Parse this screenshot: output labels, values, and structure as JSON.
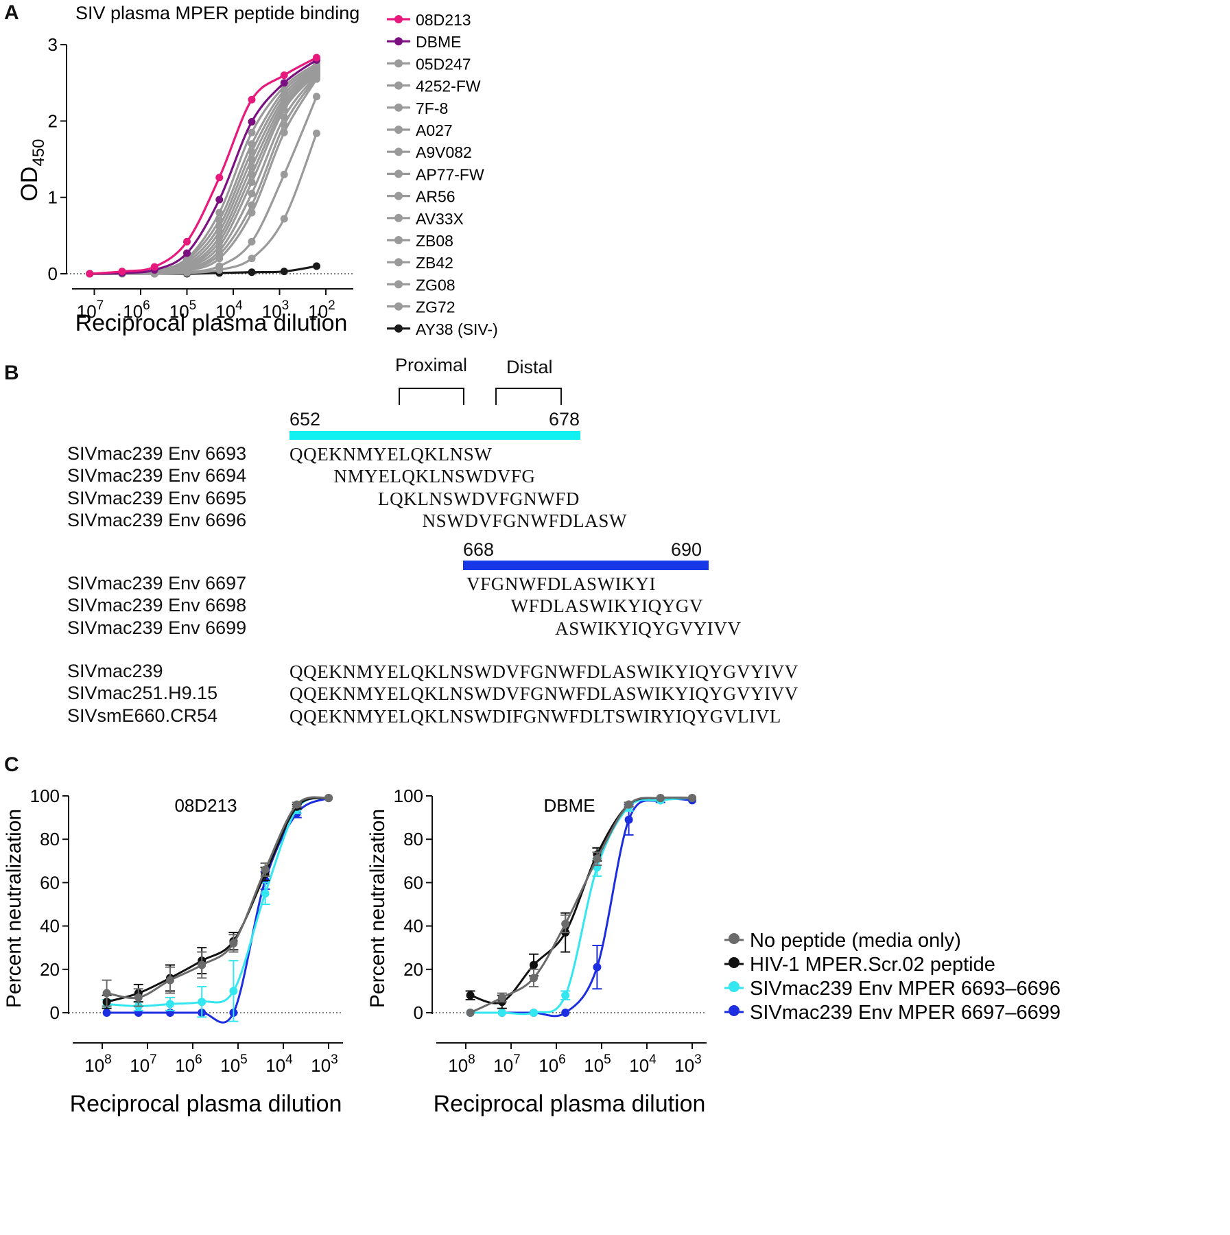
{
  "panels": {
    "a": "A",
    "b": "B",
    "c": "C"
  },
  "chart_data": [
    {
      "type": "line",
      "title": "SIV plasma MPER peptide binding",
      "ylabel_main": "OD",
      "ylabel_sub": "450",
      "xlabel": "Reciprocal plasma dilution",
      "x_log_dilution": [
        7.1,
        6.4,
        5.7,
        5.0,
        4.3,
        3.6,
        2.9,
        2.2
      ],
      "xticks": [
        {
          "base": "10",
          "exp": "7"
        },
        {
          "base": "10",
          "exp": "6"
        },
        {
          "base": "10",
          "exp": "5"
        },
        {
          "base": "10",
          "exp": "4"
        },
        {
          "base": "10",
          "exp": "3"
        },
        {
          "base": "10",
          "exp": "2"
        }
      ],
      "ylim": [
        0,
        3
      ],
      "yticks": [
        "0",
        "1",
        "2",
        "3"
      ],
      "colors": {
        "pink": "#e8197d",
        "purple": "#7b1080",
        "gray": "#9a9a9a",
        "black": "#1a1a1a"
      },
      "series": [
        {
          "name": "08D213",
          "color": "#e8197d",
          "values": [
            0.0,
            0.03,
            0.09,
            0.42,
            1.26,
            2.28,
            2.6,
            2.83
          ]
        },
        {
          "name": "DBME",
          "color": "#7b1080",
          "values": [
            0.0,
            0.01,
            0.05,
            0.27,
            0.97,
            1.99,
            2.5,
            2.8
          ]
        },
        {
          "name": "05D247",
          "color": "#9a9a9a",
          "values": [
            0.0,
            0.01,
            0.04,
            0.2,
            0.8,
            1.85,
            2.45,
            2.75
          ]
        },
        {
          "name": "4252-FW",
          "color": "#9a9a9a",
          "values": [
            0.0,
            0.01,
            0.03,
            0.18,
            0.7,
            1.7,
            2.4,
            2.72
          ]
        },
        {
          "name": "7F-8",
          "color": "#9a9a9a",
          "values": [
            0.0,
            0.01,
            0.03,
            0.15,
            0.62,
            1.6,
            2.35,
            2.7
          ]
        },
        {
          "name": "A027",
          "color": "#9a9a9a",
          "values": [
            0.0,
            0.01,
            0.02,
            0.12,
            0.55,
            1.5,
            2.3,
            2.68
          ]
        },
        {
          "name": "A9V082",
          "color": "#9a9a9a",
          "values": [
            0.0,
            0.01,
            0.02,
            0.1,
            0.48,
            1.4,
            2.25,
            2.66
          ]
        },
        {
          "name": "AP77-FW",
          "color": "#9a9a9a",
          "values": [
            0.0,
            0.0,
            0.02,
            0.09,
            0.42,
            1.3,
            2.2,
            2.64
          ]
        },
        {
          "name": "AR56",
          "color": "#9a9a9a",
          "values": [
            0.0,
            0.0,
            0.02,
            0.08,
            0.36,
            1.2,
            2.15,
            2.62
          ]
        },
        {
          "name": "AV33X",
          "color": "#9a9a9a",
          "values": [
            0.0,
            0.0,
            0.01,
            0.06,
            0.3,
            1.05,
            2.05,
            2.6
          ]
        },
        {
          "name": "ZB08",
          "color": "#9a9a9a",
          "values": [
            0.0,
            0.0,
            0.01,
            0.05,
            0.25,
            0.9,
            1.95,
            2.58
          ]
        },
        {
          "name": "ZB42",
          "color": "#9a9a9a",
          "values": [
            0.0,
            0.0,
            0.01,
            0.04,
            0.2,
            0.8,
            1.85,
            2.55
          ]
        },
        {
          "name": "ZG08",
          "color": "#9a9a9a",
          "values": [
            0.0,
            0.0,
            0.01,
            0.02,
            0.1,
            0.42,
            1.3,
            2.32
          ]
        },
        {
          "name": "ZG72",
          "color": "#9a9a9a",
          "values": [
            0.0,
            0.0,
            0.0,
            0.01,
            0.05,
            0.2,
            0.72,
            1.84
          ]
        },
        {
          "name": "AY38 (SIV-)",
          "color": "#1a1a1a",
          "values": [
            0.0,
            0.0,
            0.0,
            0.0,
            0.01,
            0.02,
            0.03,
            0.1
          ]
        }
      ]
    },
    {
      "type": "line",
      "title": "08D213",
      "ylabel": "Percent neutralization",
      "xlabel": "Reciprocal plasma dilution",
      "x_log_dilution": [
        7.9,
        7.2,
        6.5,
        5.8,
        5.1,
        4.4,
        3.7,
        3.0
      ],
      "xticks": [
        {
          "base": "10",
          "exp": "8"
        },
        {
          "base": "10",
          "exp": "7"
        },
        {
          "base": "10",
          "exp": "6"
        },
        {
          "base": "10",
          "exp": "5"
        },
        {
          "base": "10",
          "exp": "4"
        },
        {
          "base": "10",
          "exp": "3"
        }
      ],
      "ylim": [
        0,
        100
      ],
      "yticks": [
        "0",
        "20",
        "40",
        "60",
        "80",
        "100"
      ],
      "series": [
        {
          "name": "No peptide (media only)",
          "color": "#6b6b6b",
          "values": [
            9,
            7,
            15,
            22,
            32,
            66,
            96,
            99
          ],
          "errors": [
            6,
            4,
            6,
            6,
            4,
            3,
            1,
            0
          ]
        },
        {
          "name": "HIV-1 MPER.Scr.02 peptide",
          "color": "#111111",
          "values": [
            5,
            9,
            16,
            24,
            33,
            64,
            95,
            99
          ],
          "errors": [
            3,
            4,
            6,
            6,
            4,
            3,
            1,
            0
          ]
        },
        {
          "name": "SIVmac239 Env MPER 6693–6696",
          "color": "#33e6ef",
          "values": [
            4,
            3,
            4,
            5,
            10,
            55,
            94,
            99
          ],
          "errors": [
            2,
            2,
            3,
            7,
            14,
            5,
            2,
            0
          ]
        },
        {
          "name": "SIVmac239 Env MPER 6697–6699",
          "color": "#1d2de0",
          "values": [
            0,
            0,
            0,
            0,
            0,
            61,
            92,
            99
          ],
          "errors": [
            0,
            0,
            0,
            0,
            0,
            4,
            2,
            0
          ]
        }
      ]
    },
    {
      "type": "line",
      "title": "DBME",
      "ylabel": "Percent neutralization",
      "xlabel": "Reciprocal plasma dilution",
      "x_log_dilution": [
        7.9,
        7.2,
        6.5,
        5.8,
        5.1,
        4.4,
        3.7,
        3.0
      ],
      "xticks": [
        {
          "base": "10",
          "exp": "8"
        },
        {
          "base": "10",
          "exp": "7"
        },
        {
          "base": "10",
          "exp": "6"
        },
        {
          "base": "10",
          "exp": "5"
        },
        {
          "base": "10",
          "exp": "4"
        },
        {
          "base": "10",
          "exp": "3"
        }
      ],
      "ylim": [
        0,
        100
      ],
      "yticks": [
        "0",
        "20",
        "40",
        "60",
        "80",
        "100"
      ],
      "series": [
        {
          "name": "No peptide (media only)",
          "color": "#6b6b6b",
          "values": [
            0,
            7,
            16,
            41,
            71,
            96,
            99,
            99
          ],
          "errors": [
            0,
            2,
            4,
            4,
            3,
            1,
            0,
            0
          ]
        },
        {
          "name": "HIV-1 MPER.Scr.02 peptide",
          "color": "#111111",
          "values": [
            8,
            5,
            22,
            37,
            73,
            96,
            99,
            99
          ],
          "errors": [
            2,
            3,
            5,
            9,
            3,
            1,
            0,
            0
          ]
        },
        {
          "name": "SIVmac239 Env MPER 6693–6696",
          "color": "#33e6ef",
          "values": [
            0,
            0,
            0,
            8,
            67,
            95,
            98,
            99
          ],
          "errors": [
            0,
            0,
            0,
            2,
            4,
            2,
            0,
            0
          ]
        },
        {
          "name": "SIVmac239 Env MPER 6697–6699",
          "color": "#1d2de0",
          "values": [
            0,
            0,
            0,
            0,
            21,
            89,
            98,
            98
          ],
          "errors": [
            0,
            0,
            0,
            0,
            10,
            7,
            1,
            0
          ]
        }
      ]
    }
  ],
  "alignment": {
    "top_labels": {
      "proximal": "Proximal",
      "distal": "Distal"
    },
    "bar1": {
      "start": "652",
      "end": "678",
      "color": "#13f0f0"
    },
    "bar2": {
      "start": "668",
      "end": "690",
      "color": "#1738e6"
    },
    "group1": [
      {
        "label": "SIVmac239 Env 6693",
        "seq": "QQEKNMYELQKLNSW",
        "offset": 0
      },
      {
        "label": "SIVmac239 Env 6694",
        "seq": "NMYELQKLNSWDVFG",
        "offset": 4
      },
      {
        "label": "SIVmac239 Env 6695",
        "seq": "LQKLNSWDVFGNWFD",
        "offset": 8
      },
      {
        "label": "SIVmac239 Env 6696",
        "seq": "NSWDVFGNWFDLASW",
        "offset": 12
      }
    ],
    "group2": [
      {
        "label": "SIVmac239 Env 6697",
        "seq": "VFGNWFDLASWIKYI",
        "offset": 16
      },
      {
        "label": "SIVmac239 Env 6698",
        "seq": "WFDLASWIKYIQYGV",
        "offset": 20
      },
      {
        "label": "SIVmac239 Env 6699",
        "seq": "ASWIKYIQYGVYIVV",
        "offset": 24
      }
    ],
    "group3": [
      {
        "label": "SIVmac239",
        "seq": "QQEKNMYELQKLNSWDVFGNWFDLASWIKYIQYGVYIVV",
        "offset": 0
      },
      {
        "label": "SIVmac251.H9.15",
        "seq": "QQEKNMYELQKLNSWDVFGNWFDLASWIKYIQYGVYIVV",
        "offset": 0
      },
      {
        "label": "SIVsmE660.CR54",
        "seq": "QQEKNMYELQKLNSWDIFGNWFDLTSWIRYIQYGVLIVL",
        "offset": 0
      }
    ]
  }
}
